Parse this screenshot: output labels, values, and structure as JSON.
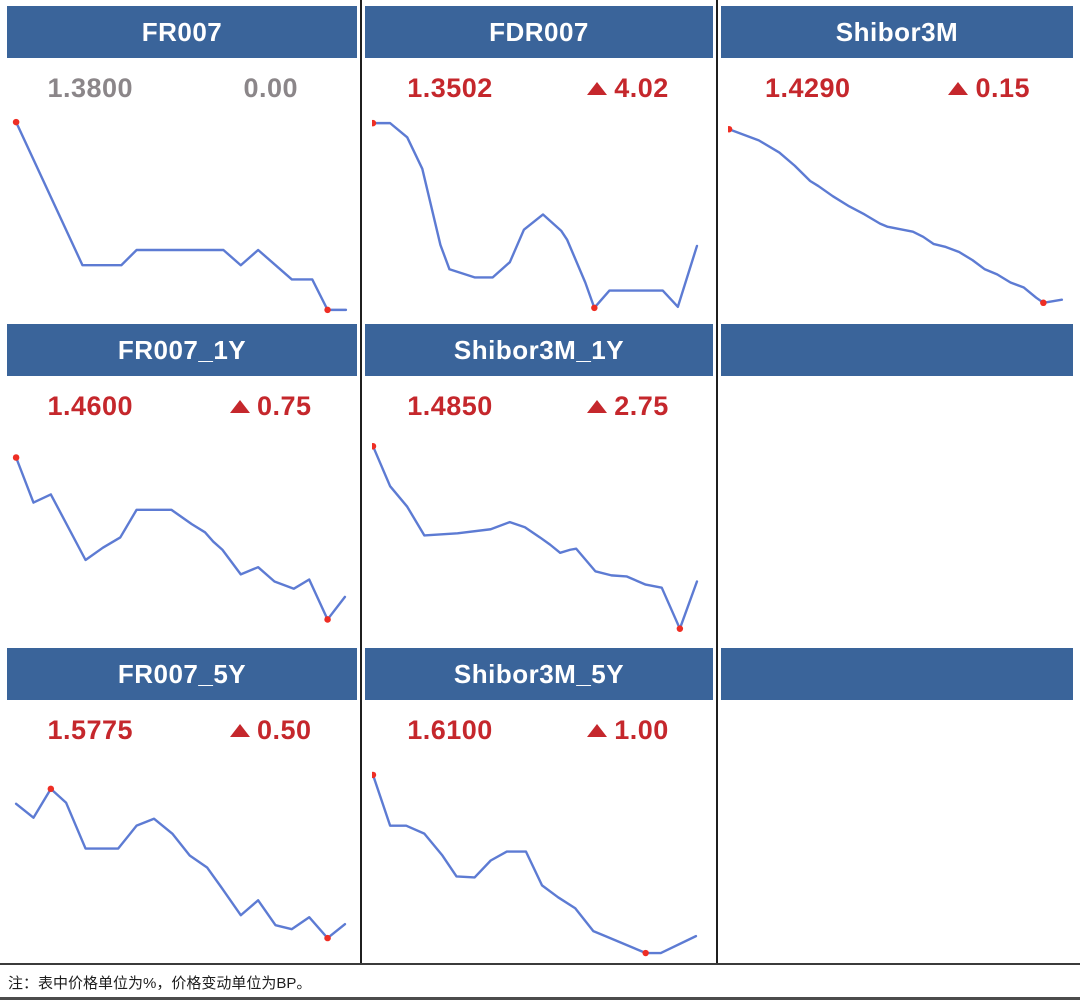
{
  "note": "注：表中价格单位为%，价格变动单位为BP。",
  "colors": {
    "header_bg": "#3a649a",
    "header_text": "#ffffff",
    "up_red": "#c5272c",
    "flat_gray": "#8b8689",
    "line_blue": "#5d7bd3",
    "dot_red": "#ee2e24",
    "column_divider": "#1f1f1f",
    "note_rule_top": "#3b3b3b",
    "note_rule_bottom": "#4c4c4c"
  },
  "panels": [
    {
      "title": "FR007",
      "value": "1.3800",
      "change": "0.00",
      "direction": "flat"
    },
    {
      "title": "FDR007",
      "value": "1.3502",
      "change": "4.02",
      "direction": "up"
    },
    {
      "title": "Shibor3M",
      "value": "1.4290",
      "change": "0.15",
      "direction": "up"
    },
    {
      "title": "FR007_1Y",
      "value": "1.4600",
      "change": "0.75",
      "direction": "up"
    },
    {
      "title": "Shibor3M_1Y",
      "value": "1.4850",
      "change": "2.75",
      "direction": "up"
    },
    {
      "title": "",
      "empty": true
    },
    {
      "title": "FR007_5Y",
      "value": "1.5775",
      "change": "0.50",
      "direction": "up"
    },
    {
      "title": "Shibor3M_5Y",
      "value": "1.6100",
      "change": "1.00",
      "direction": "up"
    },
    {
      "title": "",
      "empty": true
    }
  ],
  "chart_data": [
    {
      "type": "line",
      "name": "FR007",
      "last_price_pct": 1.38,
      "change_bp": 0.0,
      "axes_hidden": true,
      "markers_meaning": "red dots mark max and min of series",
      "x_range": [
        0,
        330
      ],
      "y_range": [
        0,
        200
      ],
      "y_direction": "screen-down",
      "points": [
        [
          5,
          7
        ],
        [
          70,
          148
        ],
        [
          108,
          148
        ],
        [
          123,
          133
        ],
        [
          208,
          133
        ],
        [
          225,
          148
        ],
        [
          242,
          133
        ],
        [
          275,
          162
        ],
        [
          295,
          162
        ],
        [
          310,
          192
        ],
        [
          328,
          192
        ]
      ],
      "marker_indices": [
        0,
        9
      ]
    },
    {
      "type": "line",
      "name": "FDR007",
      "last_price_pct": 1.3502,
      "change_bp": 4.02,
      "axes_hidden": true,
      "markers_meaning": "red dots mark max and min of series",
      "x_range": [
        0,
        330
      ],
      "y_range": [
        0,
        200
      ],
      "y_direction": "screen-down",
      "points": [
        [
          1,
          8
        ],
        [
          18,
          8
        ],
        [
          35,
          22
        ],
        [
          50,
          53
        ],
        [
          68,
          128
        ],
        [
          77,
          152
        ],
        [
          102,
          160
        ],
        [
          120,
          160
        ],
        [
          137,
          145
        ],
        [
          151,
          113
        ],
        [
          170,
          98
        ],
        [
          188,
          114
        ],
        [
          194,
          123
        ],
        [
          212,
          165
        ],
        [
          221,
          190
        ],
        [
          236,
          173
        ],
        [
          289,
          173
        ],
        [
          304,
          189
        ],
        [
          323,
          129
        ]
      ],
      "marker_indices": [
        0,
        14
      ]
    },
    {
      "type": "line",
      "name": "Shibor3M",
      "last_price_pct": 1.429,
      "change_bp": 0.15,
      "axes_hidden": true,
      "markers_meaning": "red dots mark max and min of series",
      "x_range": [
        0,
        330
      ],
      "y_range": [
        0,
        200
      ],
      "y_direction": "screen-down",
      "points": [
        [
          1,
          14
        ],
        [
          30,
          25
        ],
        [
          50,
          37
        ],
        [
          65,
          50
        ],
        [
          80,
          65
        ],
        [
          88,
          70
        ],
        [
          102,
          80
        ],
        [
          118,
          90
        ],
        [
          133,
          98
        ],
        [
          148,
          107
        ],
        [
          155,
          110
        ],
        [
          170,
          113
        ],
        [
          180,
          115
        ],
        [
          190,
          120
        ],
        [
          200,
          127
        ],
        [
          212,
          130
        ],
        [
          225,
          135
        ],
        [
          238,
          143
        ],
        [
          250,
          152
        ],
        [
          262,
          157
        ],
        [
          275,
          165
        ],
        [
          288,
          170
        ],
        [
          300,
          180
        ],
        [
          307,
          185
        ],
        [
          325,
          182
        ]
      ],
      "marker_indices": [
        0,
        23
      ]
    },
    {
      "type": "line",
      "name": "FR007_1Y",
      "last_price_pct": 1.46,
      "change_bp": 0.75,
      "axes_hidden": true,
      "markers_meaning": "red dots mark max and min of series",
      "x_range": [
        0,
        330
      ],
      "y_range": [
        0,
        200
      ],
      "y_direction": "screen-down",
      "points": [
        [
          5,
          20
        ],
        [
          22,
          64
        ],
        [
          39,
          56
        ],
        [
          73,
          120
        ],
        [
          90,
          108
        ],
        [
          107,
          98
        ],
        [
          123,
          71
        ],
        [
          157,
          71
        ],
        [
          177,
          85
        ],
        [
          190,
          93
        ],
        [
          198,
          102
        ],
        [
          207,
          110
        ],
        [
          225,
          134
        ],
        [
          242,
          127
        ],
        [
          258,
          141
        ],
        [
          277,
          148
        ],
        [
          292,
          139
        ],
        [
          310,
          178
        ],
        [
          327,
          156
        ]
      ],
      "marker_indices": [
        0,
        17
      ]
    },
    {
      "type": "line",
      "name": "Shibor3M_1Y",
      "last_price_pct": 1.485,
      "change_bp": 2.75,
      "axes_hidden": true,
      "markers_meaning": "red dots mark max and min of series",
      "x_range": [
        0,
        330
      ],
      "y_range": [
        0,
        200
      ],
      "y_direction": "screen-down",
      "points": [
        [
          1,
          9
        ],
        [
          18,
          48
        ],
        [
          35,
          68
        ],
        [
          52,
          96
        ],
        [
          85,
          94
        ],
        [
          118,
          90
        ],
        [
          137,
          83
        ],
        [
          152,
          88
        ],
        [
          167,
          98
        ],
        [
          177,
          105
        ],
        [
          187,
          113
        ],
        [
          197,
          110
        ],
        [
          203,
          109
        ],
        [
          222,
          131
        ],
        [
          238,
          135
        ],
        [
          253,
          136
        ],
        [
          272,
          144
        ],
        [
          288,
          147
        ],
        [
          306,
          187
        ],
        [
          323,
          141
        ]
      ],
      "marker_indices": [
        0,
        18
      ]
    },
    {
      "type": "line",
      "name": "FR007_5Y",
      "last_price_pct": 1.5775,
      "change_bp": 0.5,
      "axes_hidden": true,
      "markers_meaning": "red dots mark max and min of series",
      "x_range": [
        0,
        330
      ],
      "y_range": [
        0,
        200
      ],
      "y_direction": "screen-down",
      "points": [
        [
          5,
          43
        ],
        [
          22,
          57
        ],
        [
          39,
          28
        ],
        [
          54,
          42
        ],
        [
          73,
          88
        ],
        [
          105,
          88
        ],
        [
          123,
          65
        ],
        [
          140,
          58
        ],
        [
          158,
          73
        ],
        [
          175,
          95
        ],
        [
          192,
          107
        ],
        [
          206,
          127
        ],
        [
          225,
          155
        ],
        [
          242,
          140
        ],
        [
          259,
          165
        ],
        [
          275,
          169
        ],
        [
          292,
          157
        ],
        [
          310,
          178
        ],
        [
          327,
          164
        ]
      ],
      "marker_indices": [
        2,
        17
      ]
    },
    {
      "type": "line",
      "name": "Shibor3M_5Y",
      "last_price_pct": 1.61,
      "change_bp": 1.0,
      "axes_hidden": true,
      "markers_meaning": "red dots mark max and min of series",
      "x_range": [
        0,
        330
      ],
      "y_range": [
        0,
        200
      ],
      "y_direction": "screen-down",
      "points": [
        [
          1,
          14
        ],
        [
          18,
          65
        ],
        [
          34,
          65
        ],
        [
          52,
          73
        ],
        [
          70,
          95
        ],
        [
          84,
          116
        ],
        [
          102,
          117
        ],
        [
          118,
          100
        ],
        [
          134,
          91
        ],
        [
          153,
          91
        ],
        [
          169,
          125
        ],
        [
          185,
          137
        ],
        [
          202,
          148
        ],
        [
          220,
          171
        ],
        [
          232,
          176
        ],
        [
          272,
          193
        ],
        [
          287,
          193
        ],
        [
          322,
          176
        ]
      ],
      "marker_indices": [
        0,
        15
      ]
    }
  ]
}
